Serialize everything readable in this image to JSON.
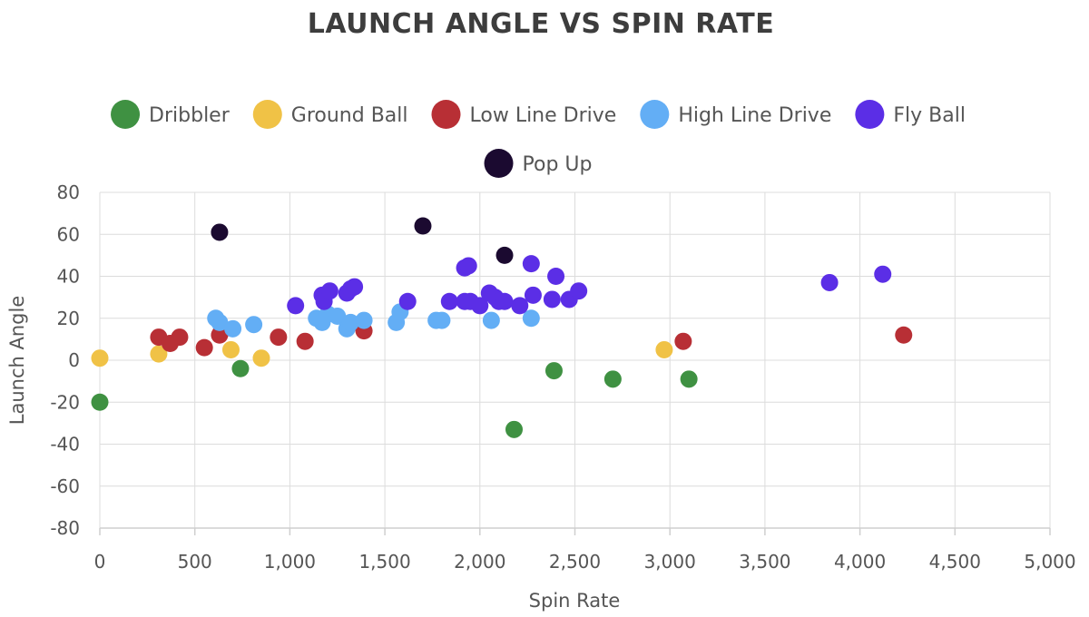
{
  "chart_data": {
    "type": "scatter",
    "title": "LAUNCH ANGLE VS SPIN RATE",
    "xlabel": "Spin Rate",
    "ylabel": "Launch Angle",
    "xlim": [
      0,
      5000
    ],
    "ylim": [
      -80,
      80
    ],
    "x_ticks": [
      0,
      500,
      1000,
      1500,
      2000,
      2500,
      3000,
      3500,
      4000,
      4500,
      5000
    ],
    "x_tick_labels": [
      "0",
      "500",
      "1,000",
      "1,500",
      "2,000",
      "2,500",
      "3,000",
      "3,500",
      "4,000",
      "4,500",
      "5,000"
    ],
    "y_ticks": [
      80,
      60,
      40,
      20,
      0,
      -20,
      -40,
      -60,
      -80
    ],
    "y_tick_labels": [
      "80",
      "60",
      "40",
      "20",
      "0",
      "-20",
      "-40",
      "-60",
      "-80"
    ],
    "grid": true,
    "legend_position": "top",
    "series": [
      {
        "name": "Dribbler",
        "color": "#3f9142",
        "points": [
          [
            0,
            -20
          ],
          [
            740,
            -4
          ],
          [
            2390,
            -5
          ],
          [
            2180,
            -33
          ],
          [
            2700,
            -9
          ],
          [
            3100,
            -9
          ]
        ]
      },
      {
        "name": "Ground Ball",
        "color": "#f0c246",
        "points": [
          [
            0,
            1
          ],
          [
            310,
            3
          ],
          [
            690,
            5
          ],
          [
            850,
            1
          ],
          [
            2970,
            5
          ]
        ]
      },
      {
        "name": "Low Line Drive",
        "color": "#b82f35",
        "points": [
          [
            310,
            11
          ],
          [
            370,
            8
          ],
          [
            420,
            11
          ],
          [
            550,
            6
          ],
          [
            630,
            12
          ],
          [
            640,
            14
          ],
          [
            940,
            11
          ],
          [
            1080,
            9
          ],
          [
            1390,
            14
          ],
          [
            3070,
            9
          ],
          [
            4230,
            12
          ]
        ]
      },
      {
        "name": "High Line Drive",
        "color": "#63aef5",
        "points": [
          [
            610,
            20
          ],
          [
            630,
            18
          ],
          [
            700,
            15
          ],
          [
            810,
            17
          ],
          [
            1140,
            20
          ],
          [
            1170,
            18
          ],
          [
            1200,
            22
          ],
          [
            1250,
            21
          ],
          [
            1300,
            15
          ],
          [
            1320,
            18
          ],
          [
            1390,
            19
          ],
          [
            1560,
            18
          ],
          [
            1580,
            23
          ],
          [
            1770,
            19
          ],
          [
            1800,
            19
          ],
          [
            2060,
            19
          ],
          [
            2270,
            20
          ]
        ]
      },
      {
        "name": "Fly Ball",
        "color": "#5b2ee6",
        "points": [
          [
            1030,
            26
          ],
          [
            1170,
            31
          ],
          [
            1180,
            28
          ],
          [
            1210,
            33
          ],
          [
            1300,
            32
          ],
          [
            1320,
            34
          ],
          [
            1340,
            35
          ],
          [
            1620,
            28
          ],
          [
            1840,
            28
          ],
          [
            1920,
            28
          ],
          [
            1950,
            28
          ],
          [
            1920,
            44
          ],
          [
            1940,
            45
          ],
          [
            2000,
            26
          ],
          [
            2050,
            32
          ],
          [
            2080,
            30
          ],
          [
            2100,
            28
          ],
          [
            2130,
            28
          ],
          [
            2210,
            26
          ],
          [
            2270,
            46
          ],
          [
            2280,
            31
          ],
          [
            2380,
            29
          ],
          [
            2400,
            40
          ],
          [
            2470,
            29
          ],
          [
            2520,
            33
          ],
          [
            3840,
            37
          ],
          [
            4120,
            41
          ]
        ]
      },
      {
        "name": "Pop Up",
        "color": "#1b0a30",
        "points": [
          [
            630,
            61
          ],
          [
            1700,
            64
          ],
          [
            2130,
            50
          ]
        ]
      }
    ]
  }
}
